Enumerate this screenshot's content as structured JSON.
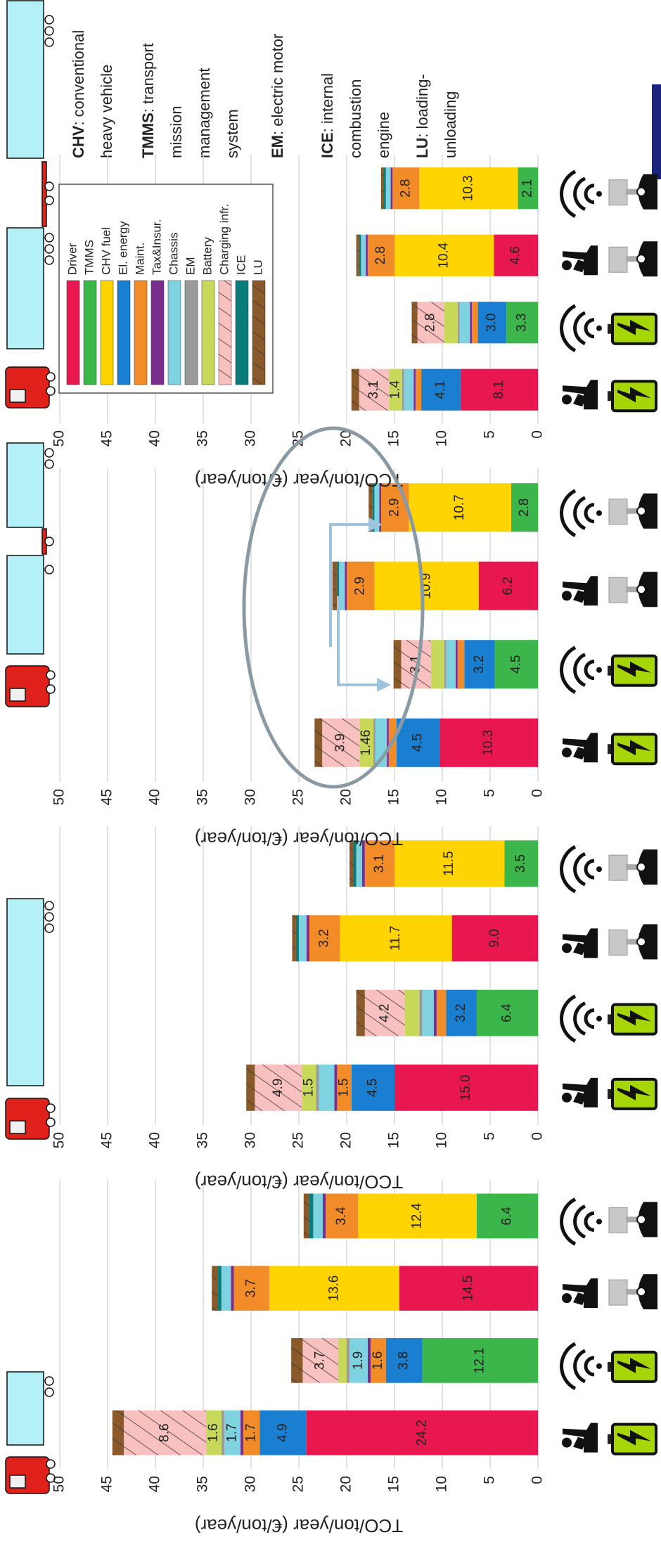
{
  "chart_data": [
    {
      "type": "bar",
      "stacked": true,
      "categories": [
        null,
        null,
        null,
        null
      ],
      "ylabel": "TCO/ton/year (€/ton/year)",
      "ylim": [
        0,
        50
      ],
      "yticks": [
        0,
        5,
        10,
        15,
        20,
        25,
        30,
        35,
        40,
        45,
        50
      ],
      "grid": true,
      "series": [
        {
          "color": "#e8174f",
          "values": [
            24.2,
            null,
            14.5,
            null
          ],
          "value_labels": [
            "24.2",
            null,
            "14.5",
            null
          ]
        },
        {
          "color": "#3cb54a",
          "values": [
            null,
            12.1,
            null,
            6.4
          ],
          "value_labels": [
            null,
            "12.1",
            null,
            "6.4"
          ]
        },
        {
          "color": "#ffd400",
          "values": [
            null,
            null,
            13.6,
            12.4
          ],
          "value_labels": [
            null,
            null,
            "13.6",
            "12.4"
          ]
        },
        {
          "color": "#1a7fd1",
          "values": [
            4.9,
            3.8,
            null,
            null
          ],
          "value_labels": [
            "4.9",
            "3.8",
            null,
            null
          ]
        },
        {
          "color": "#f28c28",
          "values": [
            1.7,
            1.6,
            3.7,
            3.4
          ],
          "value_labels": [
            "1.7",
            "1.6",
            "3.7",
            "3.4"
          ]
        },
        {
          "color": "#7b2d8e",
          "values": [
            0.3,
            0.3,
            0.3,
            0.3
          ],
          "value_labels": [
            null,
            null,
            null,
            null
          ]
        },
        {
          "color": "#7fd3e0",
          "values": [
            1.7,
            1.9,
            1.0,
            1.0
          ],
          "value_labels": [
            "1.7",
            "1.9",
            null,
            null
          ]
        },
        {
          "color": "#9a9a9a",
          "values": [
            0.3,
            0.3,
            null,
            null
          ],
          "value_labels": [
            null,
            null,
            null,
            null
          ]
        },
        {
          "color": "#c8d85a",
          "values": [
            1.6,
            0.9,
            null,
            null
          ],
          "value_labels": [
            "1.6",
            null,
            null,
            null
          ]
        },
        {
          "color": "#f9c0c0",
          "hatch": true,
          "values": [
            8.6,
            3.7,
            null,
            null
          ],
          "value_labels": [
            "8.6",
            "3.7",
            null,
            null
          ]
        },
        {
          "color": "#0b7b7b",
          "values": [
            null,
            null,
            0.4,
            0.4
          ],
          "value_labels": [
            null,
            null,
            null,
            null
          ]
        },
        {
          "color": "#8b5a2b",
          "hatch": true,
          "values": [
            1.2,
            1.2,
            0.6,
            0.6
          ],
          "value_labels": [
            null,
            null,
            null,
            null
          ]
        }
      ]
    },
    {
      "type": "bar",
      "stacked": true,
      "categories": [
        null,
        null,
        null,
        null
      ],
      "ylabel": "TCO/ton/year (€/ton/year)",
      "ylim": [
        0,
        50
      ],
      "yticks": [
        0,
        5,
        10,
        15,
        20,
        25,
        30,
        35,
        40,
        45,
        50
      ],
      "grid": true,
      "series": [
        {
          "color": "#e8174f",
          "values": [
            15.0,
            null,
            9.0,
            null
          ],
          "value_labels": [
            "15.0",
            null,
            "9.0",
            null
          ]
        },
        {
          "color": "#3cb54a",
          "values": [
            null,
            6.4,
            null,
            3.5
          ],
          "value_labels": [
            null,
            "6.4",
            null,
            "3.5"
          ]
        },
        {
          "color": "#ffd400",
          "values": [
            null,
            null,
            11.7,
            11.5
          ],
          "value_labels": [
            null,
            null,
            "11.7",
            "11.5"
          ]
        },
        {
          "color": "#1a7fd1",
          "values": [
            4.5,
            3.2,
            null,
            null
          ],
          "value_labels": [
            "4.5",
            "3.2",
            null,
            null
          ]
        },
        {
          "color": "#f28c28",
          "values": [
            1.5,
            1.0,
            3.2,
            3.1
          ],
          "value_labels": [
            "1.5",
            null,
            "3.2",
            "3.1"
          ]
        },
        {
          "color": "#7b2d8e",
          "values": [
            0.3,
            0.3,
            0.3,
            0.3
          ],
          "value_labels": [
            null,
            null,
            null,
            null
          ]
        },
        {
          "color": "#7fd3e0",
          "values": [
            1.6,
            1.2,
            0.8,
            0.6
          ],
          "value_labels": [
            null,
            null,
            null,
            null
          ]
        },
        {
          "color": "#9a9a9a",
          "values": [
            0.3,
            0.3,
            null,
            null
          ],
          "value_labels": [
            null,
            null,
            null,
            null
          ]
        },
        {
          "color": "#c8d85a",
          "values": [
            1.5,
            1.5,
            null,
            null
          ],
          "value_labels": [
            "1.5",
            null,
            null,
            null
          ]
        },
        {
          "color": "#f9c0c0",
          "hatch": true,
          "values": [
            4.9,
            4.2,
            null,
            null
          ],
          "value_labels": [
            "4.9",
            "4.2",
            null,
            null
          ]
        },
        {
          "color": "#0b7b7b",
          "values": [
            null,
            null,
            0.3,
            0.3
          ],
          "value_labels": [
            null,
            null,
            null,
            null
          ]
        },
        {
          "color": "#8b5a2b",
          "hatch": true,
          "values": [
            0.9,
            0.9,
            0.4,
            0.4
          ],
          "value_labels": [
            null,
            null,
            null,
            null
          ]
        }
      ]
    },
    {
      "type": "bar",
      "stacked": true,
      "categories": [
        null,
        null,
        null,
        null
      ],
      "ylabel": "TCO/ton/year (€/ton/year)",
      "ylim": [
        0,
        50
      ],
      "yticks": [
        0,
        5,
        10,
        15,
        20,
        25,
        30,
        35,
        40,
        45,
        50
      ],
      "grid": true,
      "series": [
        {
          "color": "#e8174f",
          "values": [
            10.3,
            null,
            6.2,
            null
          ],
          "value_labels": [
            "10.3",
            null,
            "6.2",
            null
          ]
        },
        {
          "color": "#3cb54a",
          "values": [
            null,
            4.5,
            null,
            2.8
          ],
          "value_labels": [
            null,
            "4.5",
            null,
            "2.8"
          ]
        },
        {
          "color": "#ffd400",
          "values": [
            null,
            null,
            10.9,
            10.7
          ],
          "value_labels": [
            null,
            null,
            "10.9",
            "10.7"
          ]
        },
        {
          "color": "#1a7fd1",
          "values": [
            4.5,
            3.2,
            null,
            null
          ],
          "value_labels": [
            "4.5",
            "3.2",
            null,
            null
          ]
        },
        {
          "color": "#f28c28",
          "values": [
            0.8,
            0.7,
            2.9,
            2.9
          ],
          "value_labels": [
            null,
            null,
            "2.9",
            "2.9"
          ]
        },
        {
          "color": "#7b2d8e",
          "values": [
            0.2,
            0.2,
            0.2,
            0.2
          ],
          "value_labels": [
            null,
            null,
            null,
            null
          ]
        },
        {
          "color": "#7fd3e0",
          "values": [
            1.2,
            1.0,
            0.6,
            0.5
          ],
          "value_labels": [
            null,
            null,
            null,
            null
          ]
        },
        {
          "color": "#9a9a9a",
          "values": [
            0.2,
            0.2,
            null,
            null
          ],
          "value_labels": [
            null,
            null,
            null,
            null
          ]
        },
        {
          "color": "#c8d85a",
          "values": [
            1.46,
            1.4,
            null,
            null
          ],
          "value_labels": [
            "1.46",
            null,
            null,
            null
          ]
        },
        {
          "color": "#f9c0c0",
          "hatch": true,
          "values": [
            3.9,
            3.1,
            null,
            null
          ],
          "value_labels": [
            "3.9",
            "3.1",
            null,
            null
          ]
        },
        {
          "color": "#0b7b7b",
          "values": [
            null,
            null,
            0.2,
            0.2
          ],
          "value_labels": [
            null,
            null,
            null,
            null
          ]
        },
        {
          "color": "#8b5a2b",
          "hatch": true,
          "values": [
            0.8,
            0.8,
            0.5,
            0.4
          ],
          "value_labels": [
            null,
            null,
            null,
            null
          ]
        }
      ]
    },
    {
      "type": "bar",
      "stacked": true,
      "categories": [
        null,
        null,
        null,
        null
      ],
      "ylabel": "TCO/ton/year (€/ton/year)",
      "ylim": [
        0,
        50
      ],
      "yticks": [
        0,
        5,
        10,
        15,
        20,
        25,
        30,
        35,
        40,
        45,
        50
      ],
      "grid": true,
      "legend": "upper right",
      "series": [
        {
          "name": "Driver",
          "color": "#e8174f",
          "values": [
            8.1,
            null,
            4.6,
            null
          ],
          "value_labels": [
            "8.1",
            null,
            "4.6",
            null
          ]
        },
        {
          "name": "TMMS",
          "color": "#3cb54a",
          "values": [
            null,
            3.3,
            null,
            2.1
          ],
          "value_labels": [
            null,
            "3.3",
            null,
            "2.1"
          ]
        },
        {
          "name": "CHV fuel",
          "color": "#ffd400",
          "values": [
            null,
            null,
            10.4,
            10.3
          ],
          "value_labels": [
            null,
            null,
            "10.4",
            "10.3"
          ]
        },
        {
          "name": "El. energy",
          "color": "#1a7fd1",
          "values": [
            4.1,
            3.0,
            null,
            null
          ],
          "value_labels": [
            "4.1",
            "3.0",
            null,
            null
          ]
        },
        {
          "name": "Maint.",
          "color": "#f28c28",
          "values": [
            0.6,
            0.6,
            2.8,
            2.8
          ],
          "value_labels": [
            null,
            null,
            "2.8",
            "2.8"
          ]
        },
        {
          "name": "Tax&Insur.",
          "color": "#7b2d8e",
          "values": [
            0.2,
            0.2,
            0.2,
            0.2
          ],
          "value_labels": [
            null,
            null,
            null,
            null
          ]
        },
        {
          "name": "Chassis",
          "color": "#7fd3e0",
          "values": [
            1.0,
            1.1,
            0.5,
            0.5
          ],
          "value_labels": [
            null,
            null,
            null,
            null
          ]
        },
        {
          "name": "EM",
          "color": "#9a9a9a",
          "values": [
            0.2,
            0.2,
            null,
            null
          ],
          "value_labels": [
            null,
            null,
            null,
            null
          ]
        },
        {
          "name": "Battery",
          "color": "#c8d85a",
          "values": [
            1.4,
            1.4,
            null,
            null
          ],
          "value_labels": [
            "1.4",
            null,
            null,
            null
          ]
        },
        {
          "name": "Charging infr.",
          "color": "#f9c0c0",
          "hatch": true,
          "values": [
            3.1,
            2.8,
            null,
            null
          ],
          "value_labels": [
            "3.1",
            "2.8",
            null,
            null
          ]
        },
        {
          "name": "ICE",
          "color": "#0b7b7b",
          "values": [
            null,
            null,
            0.2,
            0.2
          ],
          "value_labels": [
            null,
            null,
            null,
            null
          ]
        },
        {
          "name": "LU",
          "color": "#8b5a2b",
          "hatch": true,
          "values": [
            0.8,
            0.6,
            0.3,
            0.3
          ],
          "value_labels": [
            null,
            null,
            null,
            null
          ]
        }
      ]
    }
  ],
  "notes": [
    {
      "term": "CHV",
      "lines": [
        ": conventional",
        "heavy vehicle"
      ]
    },
    {
      "term": "TMMS",
      "lines": [
        ": transport",
        "mission",
        "management",
        "system"
      ]
    },
    {
      "term": "EM",
      "lines": [
        ": electric motor"
      ]
    },
    {
      "term": "ICE",
      "lines": [
        ": internal",
        "combustion",
        "engine"
      ]
    },
    {
      "term": "LU",
      "lines": [
        ": loading-",
        "unloading"
      ]
    }
  ]
}
